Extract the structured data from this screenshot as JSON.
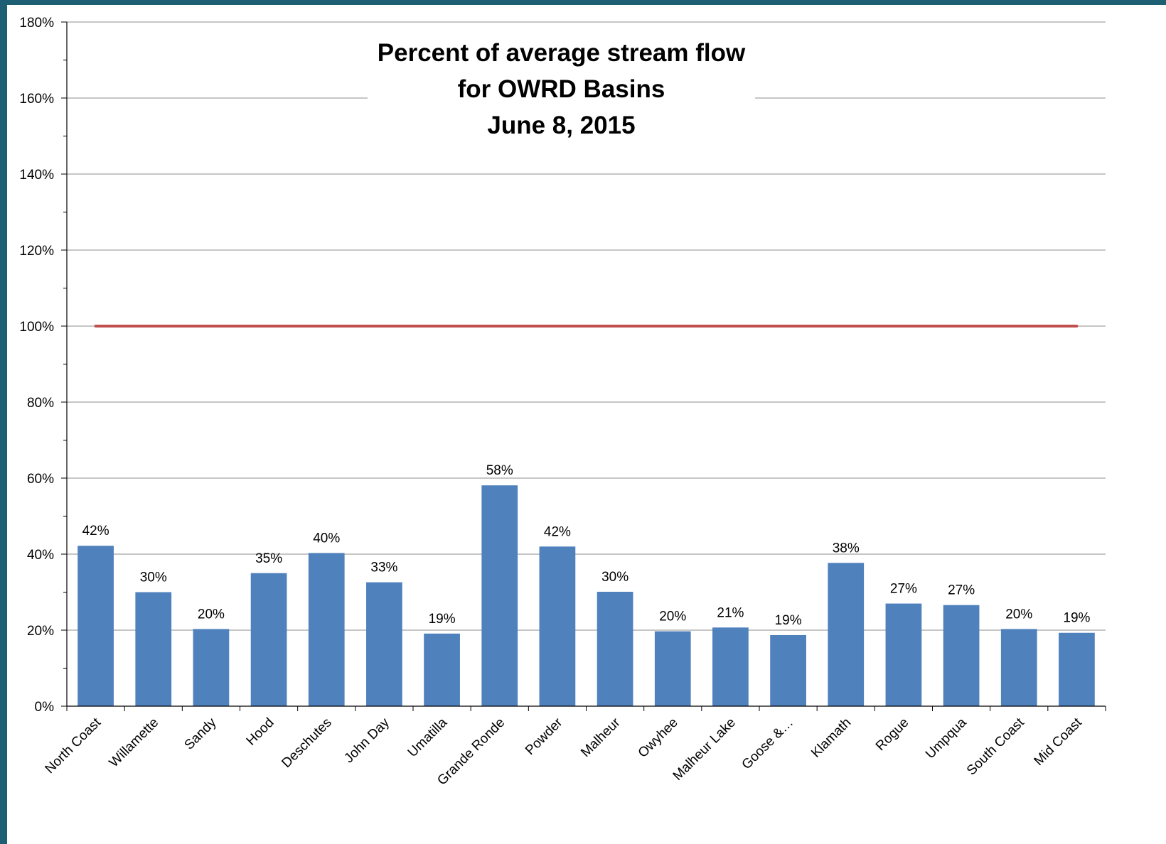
{
  "chart_data": {
    "type": "bar",
    "title": [
      "Percent of average stream flow",
      "for OWRD Basins",
      "June 8, 2015"
    ],
    "xlabel": "",
    "ylabel": "",
    "ylim": [
      0,
      180
    ],
    "y_tick_step": 20,
    "y_minor_step": 10,
    "y_tick_suffix": "%",
    "grid": true,
    "legend": "none",
    "categories": [
      "North Coast",
      "Willamette",
      "Sandy",
      "Hood",
      "Deschutes",
      "John Day",
      "Umatilla",
      "Grande Ronde",
      "Powder",
      "Malheur",
      "Owyhee",
      "Malheur Lake",
      "Goose &…",
      "Klamath",
      "Rogue",
      "Umpqua",
      "South Coast",
      "Mid Coast"
    ],
    "values": [
      42.2,
      30,
      20.3,
      35,
      40.3,
      32.6,
      19.1,
      58.1,
      42,
      30.1,
      19.7,
      20.7,
      18.7,
      37.7,
      27,
      26.6,
      20.3,
      19.3
    ],
    "data_labels": [
      "42%",
      "30%",
      "20%",
      "35%",
      "40%",
      "33%",
      "19%",
      "58%",
      "42%",
      "30%",
      "20%",
      "21%",
      "19%",
      "38%",
      "27%",
      "27%",
      "20%",
      "19%"
    ],
    "reference_line": {
      "value": 100
    },
    "colors": {
      "bar": "#4f81bd",
      "reference": "#c0504d",
      "grid": "#8c8c8c",
      "axis": "#000000"
    }
  }
}
